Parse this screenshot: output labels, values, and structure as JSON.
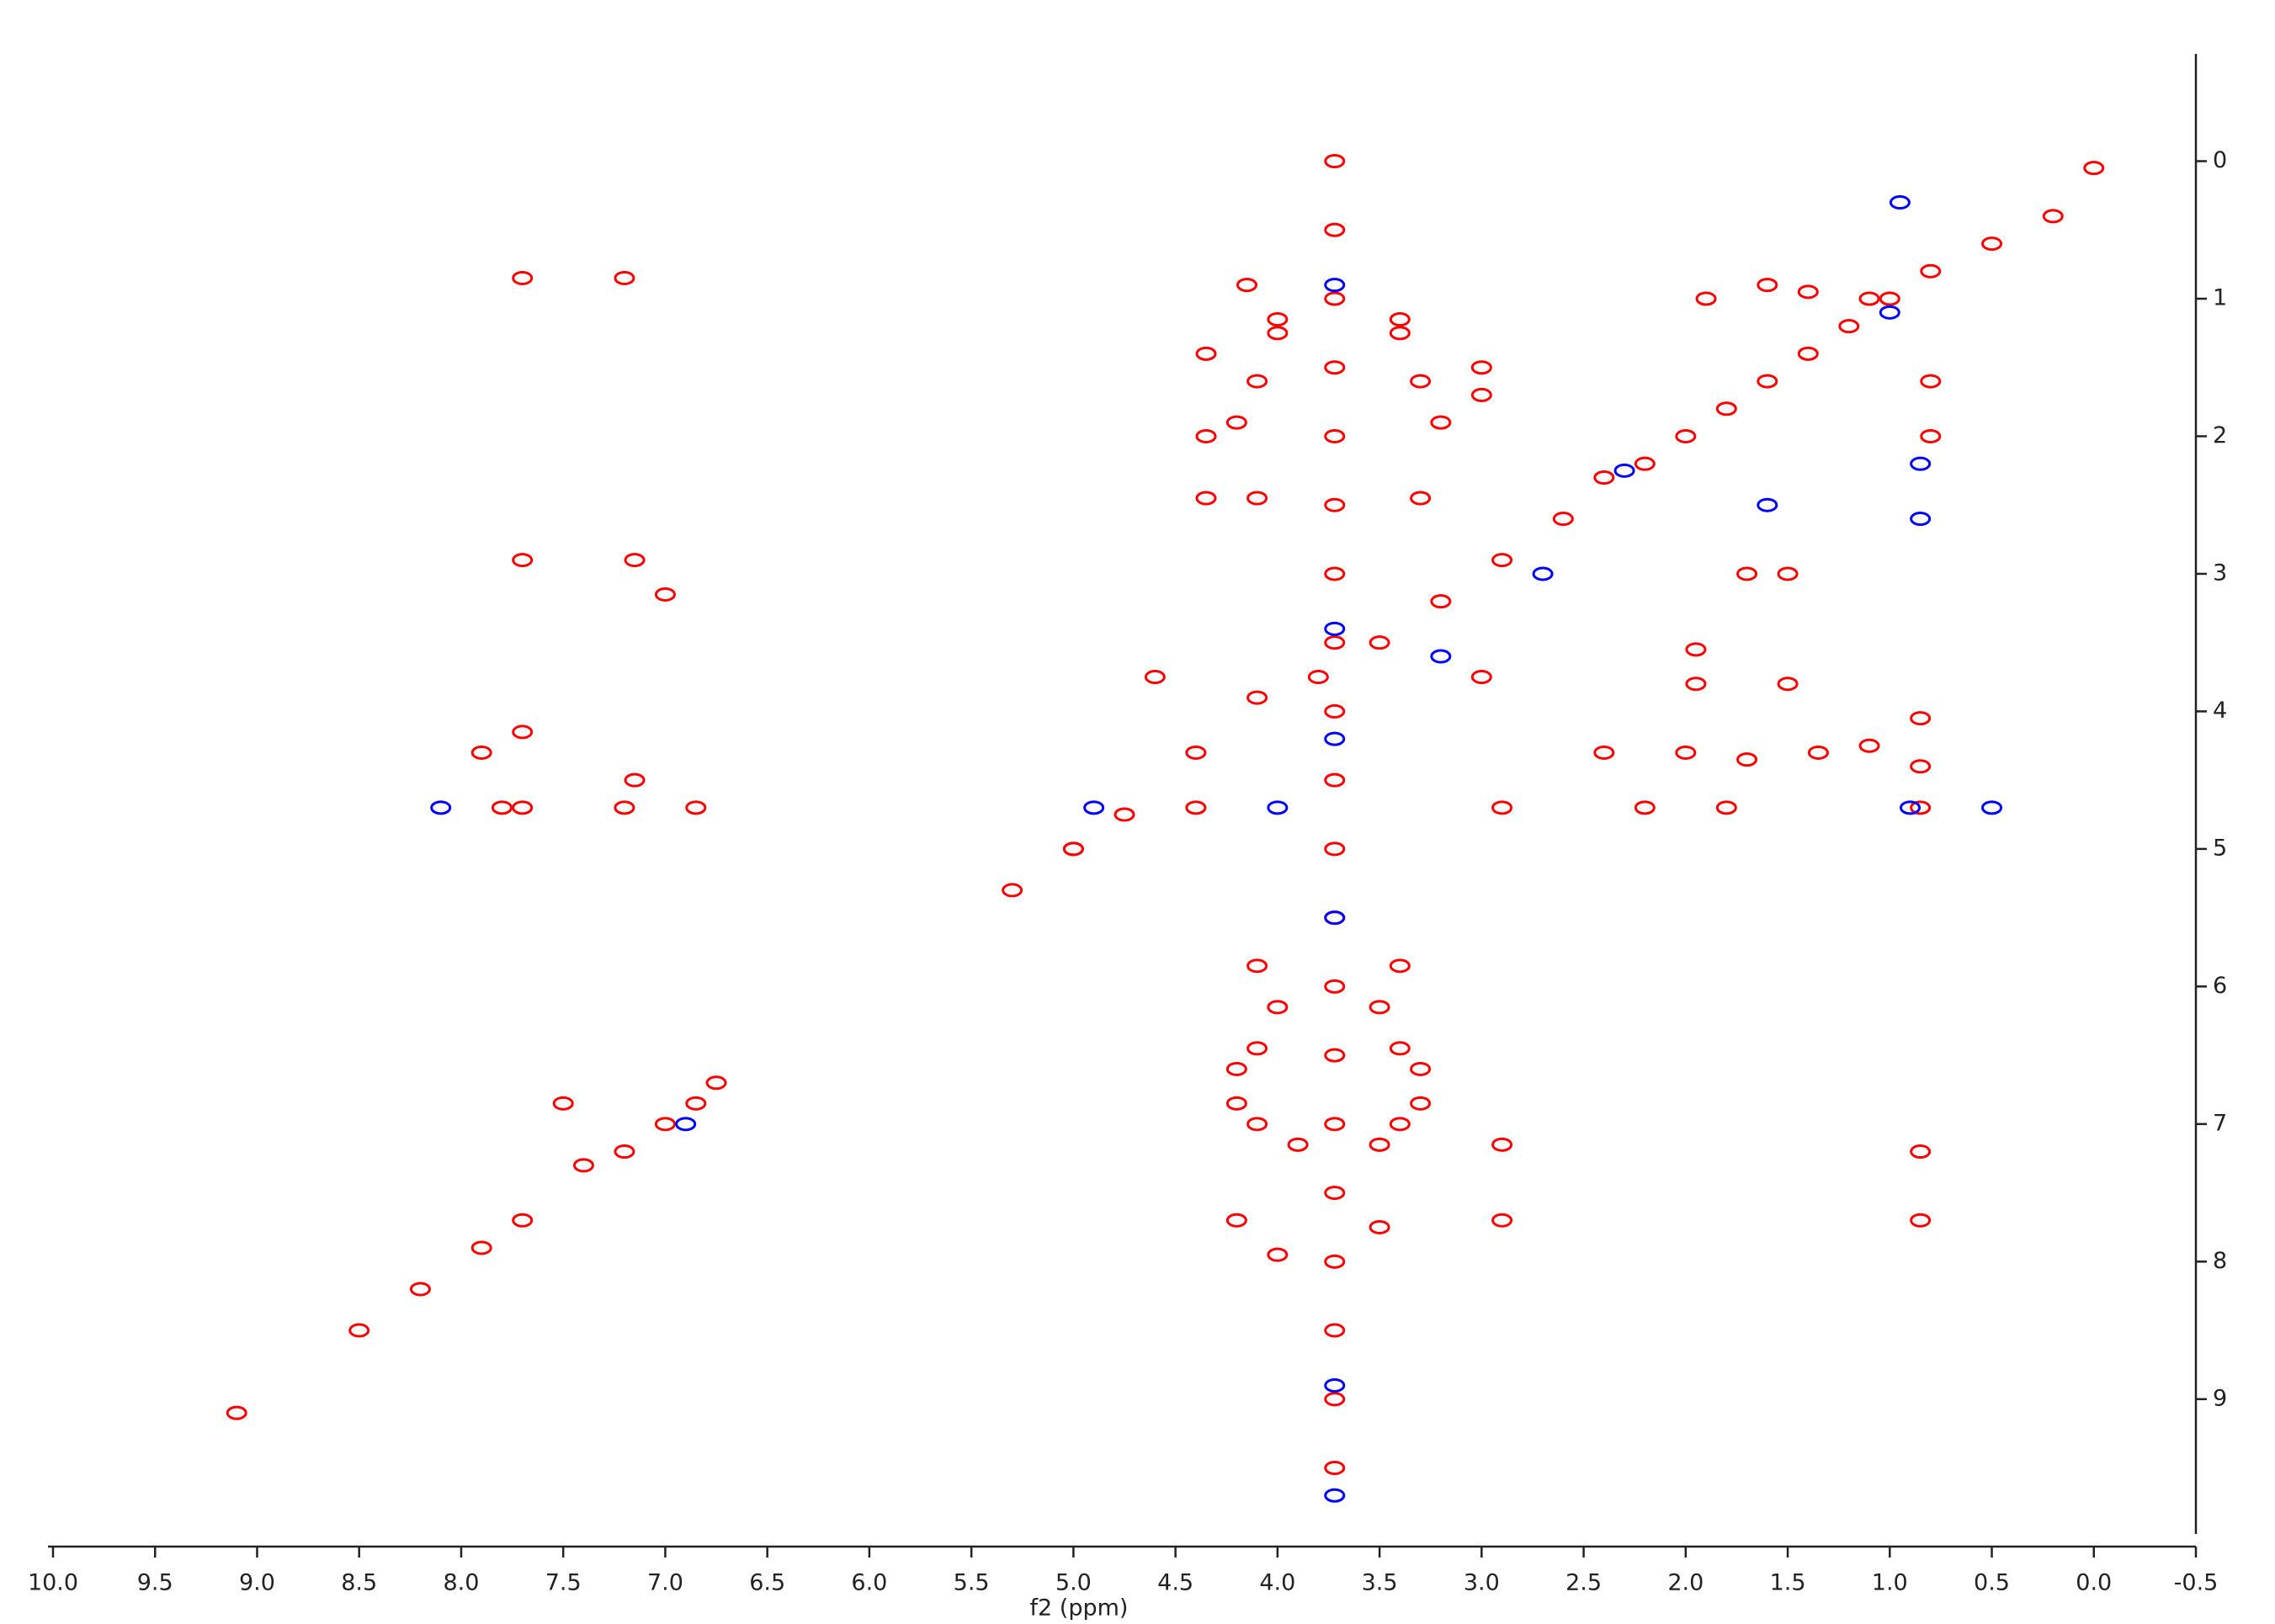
{
  "chart_data": {
    "type": "scatter",
    "x_axis_label": "f2 (ppm)",
    "xlim": [
      10,
      -0.5
    ],
    "ylim": [
      -0.78,
      9.98
    ],
    "y_axis_position": "right",
    "xticks": [
      {
        "value": 10,
        "label": "10.0"
      },
      9.5,
      {
        "value": 9,
        "label": "9.0"
      },
      8.5,
      {
        "value": 8,
        "label": "8.0"
      },
      7.5,
      {
        "value": 7,
        "label": "7.0"
      },
      6.5,
      {
        "value": 6,
        "label": "6.0"
      },
      5.5,
      {
        "value": 5,
        "label": "5.0"
      },
      4.5,
      {
        "value": 4,
        "label": "4.0"
      },
      3.5,
      {
        "value": 3,
        "label": "3.0"
      },
      2.5,
      {
        "value": 2,
        "label": "2.0"
      },
      1.5,
      {
        "value": 1,
        "label": "1.0"
      },
      0.5,
      {
        "value": 0,
        "label": "0.0"
      },
      -0.5
    ],
    "yticks": [
      0,
      1,
      2,
      3,
      4,
      5,
      6,
      7,
      8,
      9
    ],
    "series": [
      {
        "color": "#ff0000",
        "x": [
          0.0,
          0.2,
          0.5,
          0.8,
          1.0,
          1.2,
          1.4,
          1.6,
          1.8,
          2.0,
          2.2,
          2.4,
          2.6,
          2.9,
          3.2,
          3.5,
          3.8,
          4.1,
          4.4,
          4.75,
          5.0,
          5.3,
          6.85,
          7.0,
          7.2,
          7.4,
          7.7,
          7.9,
          8.2,
          8.5,
          9.1,
          3.72,
          3.72,
          3.72,
          3.72,
          3.72,
          3.72,
          3.72,
          3.72,
          3.72,
          3.72,
          3.72,
          3.72,
          3.72,
          3.72,
          3.72,
          3.72,
          3.72,
          3.72,
          3.72,
          3.72,
          3.4,
          4.0,
          3.4,
          4.0,
          3.3,
          4.1,
          3.2,
          4.2,
          3.3,
          4.1,
          3.0,
          4.6,
          3.4,
          4.1,
          3.5,
          4.0,
          3.4,
          4.1,
          3.3,
          4.2,
          3.3,
          4.2,
          3.4,
          4.1,
          3.5,
          3.9,
          3.5,
          4.0,
          4.15,
          4.35,
          4.35,
          4.35,
          3.0,
          3.0,
          1.6,
          1.4,
          1.1,
          1.9,
          0.8,
          0.8,
          1.7,
          1.5,
          1.95,
          1.95,
          1.5,
          0.85,
          0.85,
          2.4,
          2.0,
          1.7,
          1.35,
          1.1,
          0.85,
          1.8,
          2.2,
          2.9,
          4.4,
          5.0,
          7.7,
          7.2,
          7.7,
          7.15,
          7.0,
          7.7,
          7.9,
          7.15,
          7.7,
          7.2,
          6.85,
          7.8,
          2.9,
          2.9,
          4.2,
          0.85,
          0.85,
          7.5,
          6.75
        ],
        "y": [
          0.05,
          0.4,
          0.6,
          0.8,
          1.0,
          1.2,
          1.4,
          1.6,
          1.8,
          2.0,
          2.2,
          2.3,
          2.6,
          2.9,
          3.2,
          3.5,
          3.75,
          3.9,
          4.3,
          4.75,
          5.0,
          5.3,
          6.85,
          7.0,
          7.2,
          7.3,
          7.7,
          7.9,
          8.2,
          8.5,
          9.1,
          0,
          0.5,
          1,
          1.5,
          2,
          2.5,
          3,
          3.5,
          4,
          4.5,
          5,
          5.5,
          6,
          6.5,
          7,
          7.5,
          8,
          8.5,
          9,
          9.5,
          1.15,
          1.15,
          1.25,
          1.25,
          1.6,
          1.6,
          1.9,
          1.9,
          2.45,
          2.45,
          3.75,
          3.75,
          5.85,
          5.85,
          6.15,
          6.15,
          6.45,
          6.45,
          6.6,
          6.6,
          6.85,
          6.85,
          7.0,
          7.0,
          7.15,
          7.15,
          7.75,
          7.95,
          0.9,
          1.4,
          2.0,
          2.45,
          1.5,
          1.7,
          0.9,
          0.95,
          1.0,
          1.0,
          1.6,
          2.0,
          3.0,
          3.0,
          3.55,
          3.8,
          3.8,
          4.05,
          4.4,
          4.3,
          4.3,
          4.35,
          4.3,
          4.25,
          4.7,
          4.7,
          4.7,
          4.7,
          4.7,
          5.0,
          0.85,
          0.85,
          2.9,
          2.9,
          3.15,
          4.15,
          4.3,
          4.5,
          4.7,
          4.7,
          4.7,
          4.7,
          7.15,
          7.7,
          7.7,
          7.2,
          7.7,
          6.85,
          6.7
        ]
      },
      {
        "color": "#0000ff",
        "x": [
          3.72,
          3.72,
          3.72,
          3.72,
          3.72,
          3.72,
          3.2,
          2.3,
          1.0,
          0.85,
          0.85,
          0.95,
          1.6,
          2.7,
          4.0,
          8.1,
          6.9,
          0.9,
          0.5,
          4.9
        ],
        "y": [
          0.9,
          3.4,
          4.2,
          5.5,
          8.9,
          9.7,
          3.6,
          2.25,
          1.1,
          2.2,
          2.6,
          0.3,
          2.5,
          3.0,
          4.7,
          4.7,
          7.0,
          4.7,
          4.7,
          4.7
        ]
      }
    ]
  }
}
